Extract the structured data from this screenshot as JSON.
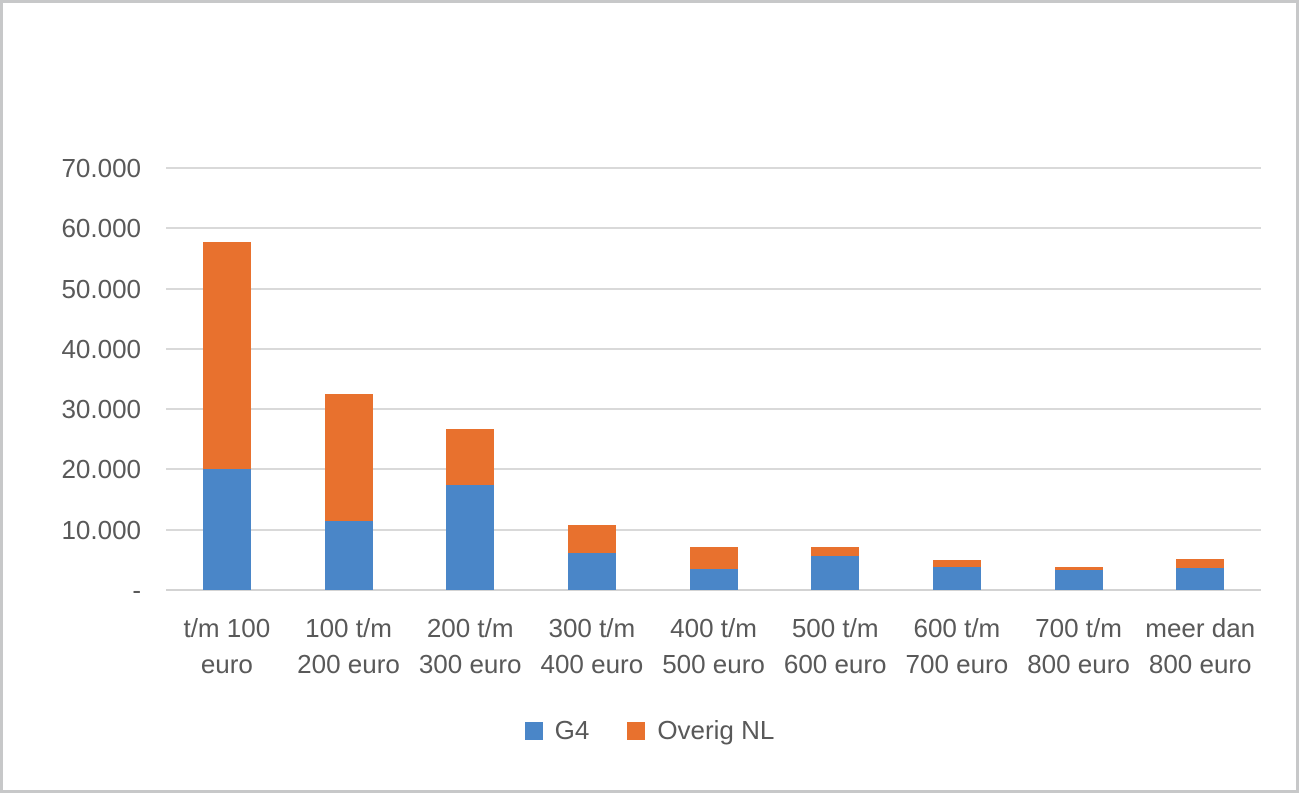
{
  "chart_data": {
    "type": "bar",
    "stacked": true,
    "title": "",
    "categories": [
      "t/m 100 euro",
      "100 t/m 200 euro",
      "200 t/m 300 euro",
      "300 t/m 400 euro",
      "400 t/m 500 euro",
      "500 t/m 600 euro",
      "600 t/m 700 euro",
      "700 t/m 800 euro",
      "meer dan 800 euro"
    ],
    "series": [
      {
        "name": "G4",
        "color": "#4a86c8",
        "values": [
          20000,
          11400,
          17500,
          6200,
          3500,
          5600,
          3900,
          3400,
          3700
        ]
      },
      {
        "name": "Overig NL",
        "color": "#e8712e",
        "values": [
          37800,
          21100,
          9200,
          4600,
          3700,
          1600,
          1100,
          500,
          1500
        ]
      }
    ],
    "ylim": [
      0,
      70000
    ],
    "ytick_step": 10000,
    "ytick_labels_top_down": [
      "70.000",
      "60.000",
      "50.000",
      "40.000",
      "30.000",
      "20.000",
      "10.000",
      "-"
    ],
    "grid": true,
    "legend_position": "bottom",
    "xlabel": "",
    "ylabel": ""
  },
  "colors": {
    "grid": "#d9d9d9",
    "axis_text": "#595959",
    "frame_border": "#c7c8c9",
    "background": "#ffffff"
  }
}
